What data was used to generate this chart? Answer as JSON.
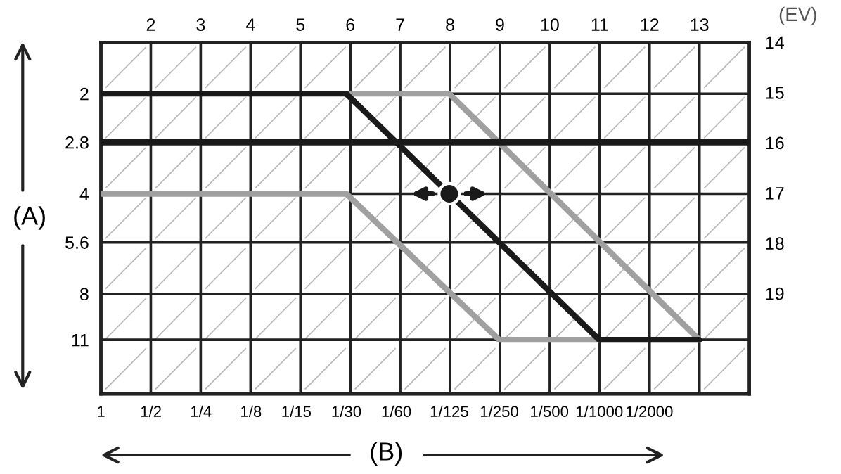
{
  "chart_data": {
    "type": "line",
    "xlabel": "(B)",
    "ylabel": "(A)",
    "x2label": "(EV)",
    "log": "xy",
    "xlim": [
      1,
      0.000125
    ],
    "ylim": [
      16,
      1.4
    ],
    "x2lim": [
      1,
      14
    ],
    "y2lim": [
      21,
      14
    ],
    "xticks": [
      1,
      {
        "value": 0.5,
        "label": "1/2"
      },
      {
        "value": 0.25,
        "label": "1/4"
      },
      {
        "value": 0.125,
        "label": "1/8"
      },
      {
        "value": 0.06667,
        "label": "1/15"
      },
      {
        "value": 0.03333,
        "label": "1/30"
      },
      {
        "value": 0.01667,
        "label": "1/60"
      },
      {
        "value": 0.008,
        "label": "1/125"
      },
      {
        "value": 0.004,
        "label": "1/250"
      },
      {
        "value": 0.002,
        "label": "1/500"
      },
      {
        "value": 0.001,
        "label": "1/1000"
      },
      {
        "value": 0.0005,
        "label": "1/2000"
      }
    ],
    "yticks": [
      2,
      2.8,
      4,
      5.6,
      8,
      11
    ],
    "x2ticks": [
      2,
      3,
      4,
      5,
      6,
      7,
      8,
      9,
      10,
      11,
      12,
      13
    ],
    "y2ticks": [
      14,
      15,
      16,
      17,
      18,
      19
    ],
    "grid": true,
    "ref_lines": [
      {
        "axis": "y",
        "value": 2.8,
        "color": "#1a1a1a"
      }
    ],
    "series": [
      {
        "color": "#a0a0a0",
        "x": [
          0.03333,
          0.008,
          0.00025
        ],
        "values": [
          2,
          2,
          11
        ]
      },
      {
        "color": "#a0a0a0",
        "x": [
          1,
          0.03333,
          0.004,
          0.001
        ],
        "values": [
          4,
          4,
          11,
          11
        ]
      },
      {
        "color": "#1a1a1a",
        "x": [
          1,
          0.03333,
          0.001,
          0.00025
        ],
        "values": [
          2,
          2,
          11,
          11
        ]
      },
      {
        "type": "scatter",
        "color": "#1a1a1a",
        "marker": "circle",
        "x": [
          0.008
        ],
        "values": [
          4
        ]
      }
    ]
  }
}
